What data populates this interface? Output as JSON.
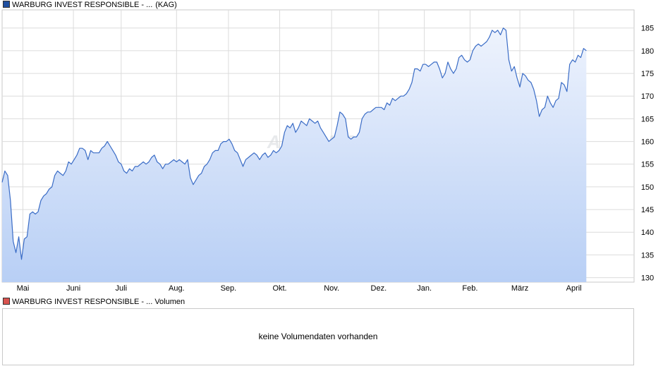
{
  "legend": {
    "price_label": "WARBURG INVEST RESPONSIBLE - ...",
    "price_type": "(KAG)",
    "price_color": "#1f4fa0",
    "volume_label": "WARBURG INVEST RESPONSIBLE - ... Volumen",
    "volume_color": "#d9534f"
  },
  "watermark": "ARIVA.DE",
  "volume_panel": {
    "message": "keine Volumendaten vorhanden"
  },
  "chart_data": {
    "type": "area",
    "line_color": "#3a6cc6",
    "fill_top": "#eef3fd",
    "fill_bottom": "#b8cff5",
    "grid": true,
    "ylim": [
      129,
      189
    ],
    "y_ticks": [
      130,
      135,
      140,
      145,
      150,
      155,
      160,
      165,
      170,
      175,
      180,
      185
    ],
    "y_axis_side": "right",
    "x_ticks": [
      "Mai",
      "Juni",
      "Juli",
      "Aug.",
      "Sep.",
      "Okt.",
      "Nov.",
      "Dez.",
      "Jan.",
      "Feb.",
      "März",
      "April"
    ],
    "x_tick_days": [
      30,
      103,
      172,
      252,
      327,
      401,
      476,
      544,
      610,
      676,
      748,
      826
    ],
    "x_days_total": 913,
    "series": [
      {
        "values": [
          [
            0,
            151
          ],
          [
            4,
            153.5
          ],
          [
            8,
            152.5
          ],
          [
            12,
            147
          ],
          [
            16,
            138
          ],
          [
            20,
            135.5
          ],
          [
            24,
            139
          ],
          [
            28,
            134
          ],
          [
            32,
            138.5
          ],
          [
            36,
            139
          ],
          [
            40,
            144
          ],
          [
            44,
            144.5
          ],
          [
            48,
            144
          ],
          [
            52,
            144.5
          ],
          [
            56,
            147
          ],
          [
            60,
            148
          ],
          [
            64,
            148.5
          ],
          [
            68,
            149.5
          ],
          [
            72,
            150
          ],
          [
            76,
            152.5
          ],
          [
            80,
            153.5
          ],
          [
            84,
            153
          ],
          [
            88,
            152.5
          ],
          [
            92,
            153.5
          ],
          [
            96,
            155.5
          ],
          [
            100,
            155
          ],
          [
            104,
            156
          ],
          [
            108,
            157
          ],
          [
            112,
            158.5
          ],
          [
            116,
            158.5
          ],
          [
            120,
            158
          ],
          [
            124,
            156
          ],
          [
            128,
            158
          ],
          [
            132,
            157.5
          ],
          [
            136,
            157.5
          ],
          [
            140,
            157.5
          ],
          [
            144,
            158.5
          ],
          [
            148,
            159
          ],
          [
            152,
            160
          ],
          [
            156,
            159
          ],
          [
            160,
            158
          ],
          [
            164,
            157
          ],
          [
            168,
            155.5
          ],
          [
            172,
            155
          ],
          [
            176,
            153.5
          ],
          [
            180,
            153
          ],
          [
            184,
            154
          ],
          [
            188,
            153.5
          ],
          [
            192,
            154.5
          ],
          [
            196,
            154.5
          ],
          [
            200,
            155
          ],
          [
            204,
            155.5
          ],
          [
            208,
            155
          ],
          [
            212,
            155.5
          ],
          [
            216,
            156.5
          ],
          [
            220,
            157
          ],
          [
            224,
            155.5
          ],
          [
            228,
            155
          ],
          [
            232,
            154
          ],
          [
            236,
            155
          ],
          [
            240,
            155
          ],
          [
            244,
            155.5
          ],
          [
            248,
            156
          ],
          [
            252,
            155.5
          ],
          [
            256,
            156
          ],
          [
            260,
            155.5
          ],
          [
            264,
            155
          ],
          [
            268,
            156
          ],
          [
            272,
            152
          ],
          [
            276,
            150.5
          ],
          [
            280,
            151.5
          ],
          [
            284,
            152.5
          ],
          [
            288,
            153
          ],
          [
            292,
            154.5
          ],
          [
            296,
            155
          ],
          [
            300,
            156
          ],
          [
            304,
            157.5
          ],
          [
            308,
            158
          ],
          [
            312,
            158
          ],
          [
            316,
            159.5
          ],
          [
            320,
            160
          ],
          [
            324,
            160
          ],
          [
            328,
            160.5
          ],
          [
            332,
            159.5
          ],
          [
            336,
            158
          ],
          [
            340,
            157.5
          ],
          [
            344,
            156
          ],
          [
            348,
            154.5
          ],
          [
            352,
            156
          ],
          [
            356,
            156.5
          ],
          [
            360,
            157
          ],
          [
            364,
            157.5
          ],
          [
            368,
            157
          ],
          [
            372,
            156
          ],
          [
            376,
            157
          ],
          [
            380,
            157.5
          ],
          [
            384,
            156.5
          ],
          [
            388,
            157
          ],
          [
            392,
            158
          ],
          [
            396,
            157.5
          ],
          [
            400,
            158
          ],
          [
            404,
            159
          ],
          [
            408,
            162
          ],
          [
            412,
            163.5
          ],
          [
            416,
            163
          ],
          [
            420,
            164
          ],
          [
            424,
            162
          ],
          [
            428,
            163
          ],
          [
            432,
            164.5
          ],
          [
            436,
            164
          ],
          [
            440,
            163.5
          ],
          [
            444,
            165
          ],
          [
            448,
            164.5
          ],
          [
            452,
            164
          ],
          [
            456,
            164.5
          ],
          [
            460,
            163
          ],
          [
            464,
            162
          ],
          [
            468,
            161
          ],
          [
            472,
            160
          ],
          [
            476,
            160.5
          ],
          [
            480,
            161
          ],
          [
            484,
            163.5
          ],
          [
            488,
            166.5
          ],
          [
            492,
            166
          ],
          [
            496,
            165
          ],
          [
            500,
            161
          ],
          [
            504,
            160.5
          ],
          [
            508,
            161
          ],
          [
            512,
            161
          ],
          [
            516,
            162
          ],
          [
            520,
            165
          ],
          [
            524,
            166
          ],
          [
            528,
            166.5
          ],
          [
            532,
            166.5
          ],
          [
            536,
            167
          ],
          [
            540,
            167.5
          ],
          [
            544,
            167.5
          ],
          [
            548,
            167.5
          ],
          [
            552,
            167
          ],
          [
            556,
            168.5
          ],
          [
            560,
            168
          ],
          [
            564,
            169.5
          ],
          [
            568,
            169
          ],
          [
            572,
            169.5
          ],
          [
            576,
            170
          ],
          [
            580,
            170
          ],
          [
            584,
            170.5
          ],
          [
            588,
            171.5
          ],
          [
            592,
            173
          ],
          [
            596,
            176
          ],
          [
            600,
            176
          ],
          [
            604,
            175.5
          ],
          [
            608,
            177
          ],
          [
            612,
            177
          ],
          [
            616,
            176.5
          ],
          [
            620,
            177
          ],
          [
            624,
            177.5
          ],
          [
            628,
            177.5
          ],
          [
            632,
            176
          ],
          [
            636,
            174
          ],
          [
            640,
            175
          ],
          [
            644,
            177.5
          ],
          [
            648,
            176
          ],
          [
            652,
            175
          ],
          [
            656,
            176
          ],
          [
            660,
            178.5
          ],
          [
            664,
            179
          ],
          [
            668,
            178
          ],
          [
            672,
            177.5
          ],
          [
            676,
            178
          ],
          [
            680,
            180
          ],
          [
            684,
            181
          ],
          [
            688,
            181.5
          ],
          [
            692,
            181
          ],
          [
            696,
            181.5
          ],
          [
            700,
            182
          ],
          [
            704,
            183
          ],
          [
            708,
            184.5
          ],
          [
            712,
            184
          ],
          [
            716,
            184.5
          ],
          [
            720,
            183.5
          ],
          [
            724,
            185
          ],
          [
            728,
            184.5
          ],
          [
            732,
            178
          ],
          [
            736,
            175.5
          ],
          [
            740,
            176.5
          ],
          [
            744,
            174
          ],
          [
            748,
            172
          ],
          [
            752,
            175
          ],
          [
            756,
            174.5
          ],
          [
            760,
            173.5
          ],
          [
            764,
            173
          ],
          [
            768,
            171.5
          ],
          [
            772,
            169
          ],
          [
            776,
            165.5
          ],
          [
            780,
            167
          ],
          [
            784,
            167.5
          ],
          [
            788,
            170
          ],
          [
            792,
            168.5
          ],
          [
            796,
            167.5
          ],
          [
            800,
            169
          ],
          [
            804,
            169.5
          ],
          [
            808,
            173
          ],
          [
            812,
            172.5
          ],
          [
            816,
            171
          ],
          [
            820,
            177
          ],
          [
            824,
            178
          ],
          [
            828,
            177.5
          ],
          [
            832,
            179
          ],
          [
            836,
            178.5
          ],
          [
            840,
            180.5
          ],
          [
            844,
            180
          ]
        ]
      }
    ]
  }
}
